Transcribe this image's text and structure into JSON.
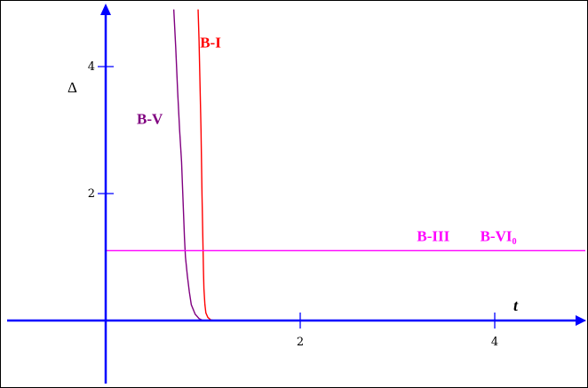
{
  "chart_data": {
    "type": "line",
    "xlabel": "t",
    "ylabel": "Δ",
    "xlim": [
      -0.5,
      5.0
    ],
    "ylim": [
      -0.8,
      4.9
    ],
    "xticks": [
      2,
      4
    ],
    "yticks": [
      2,
      4
    ],
    "xtick_labels": [
      "2",
      "4"
    ],
    "ytick_labels": [
      "2",
      "4"
    ],
    "grid": false,
    "series": [
      {
        "name": "B-I",
        "color": "#ff0000",
        "x": [
          0.95,
          0.96,
          0.97,
          0.98,
          0.985,
          0.99,
          0.995,
          1.0,
          1.005,
          1.01,
          1.02,
          1.03,
          1.05,
          1.08,
          1.12,
          5.0
        ],
        "y": [
          4.9,
          4.4,
          3.7,
          3.0,
          2.5,
          2.0,
          1.6,
          1.2,
          0.8,
          0.5,
          0.25,
          0.12,
          0.05,
          0.01,
          0.0,
          0.0
        ]
      },
      {
        "name": "B-V",
        "color": "#800080",
        "x": [
          0.7,
          0.72,
          0.74,
          0.76,
          0.78,
          0.79,
          0.8,
          0.81,
          0.82,
          0.84,
          0.86,
          0.88,
          0.92,
          0.96,
          1.0,
          5.0
        ],
        "y": [
          4.9,
          4.3,
          3.6,
          3.0,
          2.5,
          2.1,
          1.7,
          1.3,
          1.0,
          0.7,
          0.45,
          0.25,
          0.1,
          0.03,
          0.0,
          0.0
        ]
      },
      {
        "name": "B-III",
        "color": "#ff00ff",
        "x": [
          0.0,
          5.0
        ],
        "y": [
          1.1,
          1.1
        ]
      },
      {
        "name": "B-VI₀",
        "color": "#ff00ff",
        "x": [
          0.0,
          5.0
        ],
        "y": [
          1.1,
          1.1
        ]
      }
    ],
    "series_labels": [
      {
        "text": "B-I",
        "x": 0.97,
        "y": 4.3,
        "color": "#ff0000"
      },
      {
        "text": "B-V",
        "x": 0.32,
        "y": 3.1,
        "color": "#800080"
      },
      {
        "text": "B-III",
        "x": 3.2,
        "y": 1.25,
        "color": "#ff00ff"
      },
      {
        "text": "B-VI₀",
        "x": 3.85,
        "y": 1.25,
        "color": "#ff00ff"
      }
    ],
    "axis_color": "#0000ff"
  }
}
